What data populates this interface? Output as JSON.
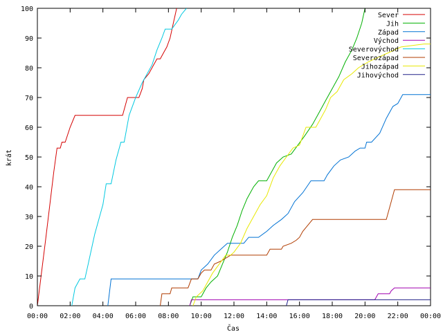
{
  "chart_data": {
    "type": "line",
    "xlabel": "Čas",
    "ylabel": "krát",
    "ylim": [
      0,
      100
    ],
    "xlim": [
      "00:00",
      "24:00"
    ],
    "x_unit": "hours",
    "grid": false,
    "legend_position": "top-right",
    "y_ticks": [
      "0",
      "10",
      "20",
      "30",
      "40",
      "50",
      "60",
      "70",
      "80",
      "90",
      "100"
    ],
    "x_ticks": [
      "00:00",
      "02:00",
      "04:00",
      "06:00",
      "08:00",
      "10:00",
      "12:00",
      "14:00",
      "16:00",
      "18:00",
      "20:00",
      "22:00",
      "00:00"
    ],
    "series": [
      {
        "name": "Sever",
        "color": "#d40000",
        "points": [
          [
            0.0,
            0
          ],
          [
            0.5,
            22
          ],
          [
            1.0,
            45
          ],
          [
            1.2,
            53
          ],
          [
            1.4,
            53
          ],
          [
            1.5,
            55
          ],
          [
            1.7,
            55
          ],
          [
            2.0,
            60
          ],
          [
            2.3,
            64
          ],
          [
            5.2,
            64
          ],
          [
            5.5,
            70
          ],
          [
            6.2,
            70
          ],
          [
            6.4,
            73
          ],
          [
            6.5,
            76
          ],
          [
            6.8,
            78
          ],
          [
            7.1,
            81
          ],
          [
            7.3,
            83
          ],
          [
            7.5,
            83
          ],
          [
            7.7,
            85
          ],
          [
            7.9,
            87
          ],
          [
            8.1,
            90
          ],
          [
            8.3,
            95
          ],
          [
            8.5,
            100
          ]
        ]
      },
      {
        "name": "Jih",
        "color": "#00b000",
        "points": [
          [
            9.3,
            0
          ],
          [
            9.5,
            3
          ],
          [
            10.0,
            3
          ],
          [
            10.3,
            6
          ],
          [
            10.6,
            8
          ],
          [
            11.0,
            10
          ],
          [
            11.3,
            14
          ],
          [
            11.6,
            18
          ],
          [
            11.9,
            23
          ],
          [
            12.2,
            27
          ],
          [
            12.5,
            32
          ],
          [
            12.8,
            36
          ],
          [
            13.2,
            40
          ],
          [
            13.5,
            42
          ],
          [
            14.0,
            42
          ],
          [
            14.3,
            45
          ],
          [
            14.6,
            48
          ],
          [
            15.0,
            50
          ],
          [
            15.5,
            51
          ],
          [
            15.9,
            54
          ],
          [
            16.3,
            57
          ],
          [
            16.8,
            61
          ],
          [
            17.2,
            65
          ],
          [
            17.6,
            69
          ],
          [
            18.0,
            73
          ],
          [
            18.4,
            77
          ],
          [
            18.8,
            82
          ],
          [
            19.2,
            86
          ],
          [
            19.5,
            90
          ],
          [
            19.8,
            95
          ],
          [
            20.0,
            100
          ]
        ]
      },
      {
        "name": "Západ",
        "color": "#0072d4",
        "points": [
          [
            4.3,
            0
          ],
          [
            4.5,
            9
          ],
          [
            9.5,
            9
          ],
          [
            9.8,
            9
          ],
          [
            10.0,
            12
          ],
          [
            10.4,
            14
          ],
          [
            10.8,
            17
          ],
          [
            11.2,
            19
          ],
          [
            11.6,
            21
          ],
          [
            12.6,
            21
          ],
          [
            12.9,
            23
          ],
          [
            13.5,
            23
          ],
          [
            14.0,
            25
          ],
          [
            14.4,
            27
          ],
          [
            14.9,
            29
          ],
          [
            15.3,
            31
          ],
          [
            15.7,
            35
          ],
          [
            16.2,
            38
          ],
          [
            16.7,
            42
          ],
          [
            17.5,
            42
          ],
          [
            17.7,
            44
          ],
          [
            18.1,
            47
          ],
          [
            18.5,
            49
          ],
          [
            19.0,
            50
          ],
          [
            19.4,
            52
          ],
          [
            19.7,
            53
          ],
          [
            20.0,
            53
          ],
          [
            20.1,
            55
          ],
          [
            20.4,
            55
          ],
          [
            20.9,
            58
          ],
          [
            21.3,
            63
          ],
          [
            21.7,
            67
          ],
          [
            22.0,
            68
          ],
          [
            22.3,
            71
          ],
          [
            24.0,
            71
          ]
        ]
      },
      {
        "name": "Východ",
        "color": "#a000b0",
        "points": [
          [
            9.3,
            0
          ],
          [
            9.4,
            2
          ],
          [
            20.6,
            2
          ],
          [
            20.8,
            4
          ],
          [
            21.5,
            4
          ],
          [
            21.6,
            5
          ],
          [
            21.8,
            6
          ],
          [
            24.0,
            6
          ]
        ]
      },
      {
        "name": "Severovýchod",
        "color": "#00c8e0",
        "points": [
          [
            2.1,
            0
          ],
          [
            2.3,
            6
          ],
          [
            2.6,
            9
          ],
          [
            2.9,
            9
          ],
          [
            3.1,
            14
          ],
          [
            3.5,
            24
          ],
          [
            4.0,
            34
          ],
          [
            4.2,
            41
          ],
          [
            4.5,
            41
          ],
          [
            4.8,
            49
          ],
          [
            5.1,
            55
          ],
          [
            5.3,
            55
          ],
          [
            5.6,
            64
          ],
          [
            6.0,
            70
          ],
          [
            6.4,
            75
          ],
          [
            6.7,
            78
          ],
          [
            7.0,
            81
          ],
          [
            7.3,
            86
          ],
          [
            7.6,
            90
          ],
          [
            7.8,
            93
          ],
          [
            8.2,
            93
          ],
          [
            8.6,
            96
          ],
          [
            8.8,
            98
          ],
          [
            9.1,
            100
          ]
        ]
      },
      {
        "name": "Severozápad",
        "color": "#b03c00",
        "points": [
          [
            7.5,
            0
          ],
          [
            7.6,
            4
          ],
          [
            8.1,
            4
          ],
          [
            8.2,
            6
          ],
          [
            9.2,
            6
          ],
          [
            9.4,
            9
          ],
          [
            9.8,
            9
          ],
          [
            10.0,
            11
          ],
          [
            10.2,
            12
          ],
          [
            10.6,
            12
          ],
          [
            10.8,
            14
          ],
          [
            11.2,
            15
          ],
          [
            11.5,
            16
          ],
          [
            11.8,
            17
          ],
          [
            14.0,
            17
          ],
          [
            14.2,
            19
          ],
          [
            14.9,
            19
          ],
          [
            15.0,
            20
          ],
          [
            15.5,
            21
          ],
          [
            15.8,
            22
          ],
          [
            16.0,
            23
          ],
          [
            16.2,
            25
          ],
          [
            16.5,
            27
          ],
          [
            16.8,
            29
          ],
          [
            21.3,
            29
          ],
          [
            21.6,
            35
          ],
          [
            21.8,
            39
          ],
          [
            24.0,
            39
          ]
        ]
      },
      {
        "name": "Jihozápad",
        "color": "#e8e800",
        "points": [
          [
            9.5,
            0
          ],
          [
            9.7,
            3
          ],
          [
            10.1,
            5
          ],
          [
            10.4,
            8
          ],
          [
            10.7,
            11
          ],
          [
            11.1,
            14
          ],
          [
            11.5,
            17
          ],
          [
            11.8,
            17
          ],
          [
            12.0,
            18
          ],
          [
            12.4,
            21
          ],
          [
            12.8,
            26
          ],
          [
            13.2,
            30
          ],
          [
            13.6,
            34
          ],
          [
            14.0,
            37
          ],
          [
            14.4,
            43
          ],
          [
            14.8,
            47
          ],
          [
            15.2,
            50
          ],
          [
            15.6,
            53
          ],
          [
            16.0,
            54
          ],
          [
            16.4,
            60
          ],
          [
            17.0,
            60
          ],
          [
            17.3,
            63
          ],
          [
            17.6,
            66
          ],
          [
            17.9,
            70
          ],
          [
            18.3,
            72
          ],
          [
            18.7,
            76
          ],
          [
            19.2,
            78
          ],
          [
            19.6,
            80
          ],
          [
            20.2,
            82
          ],
          [
            20.6,
            83
          ],
          [
            21.0,
            84
          ],
          [
            21.4,
            85
          ],
          [
            21.8,
            86
          ],
          [
            22.2,
            87
          ],
          [
            23.6,
            88
          ],
          [
            24.0,
            88
          ]
        ]
      },
      {
        "name": "Jihovýchod",
        "color": "#202088",
        "points": [
          [
            15.2,
            0
          ],
          [
            15.3,
            2
          ],
          [
            24.0,
            2
          ]
        ]
      }
    ]
  }
}
